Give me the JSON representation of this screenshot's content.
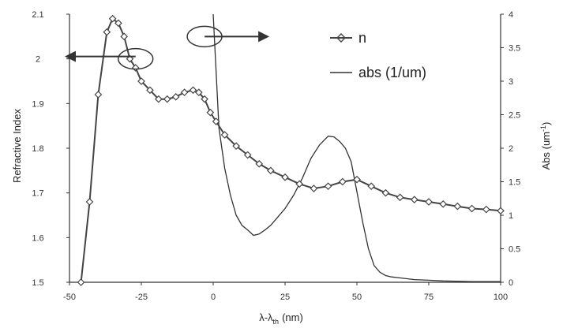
{
  "chart_data": {
    "type": "line",
    "xlabel": "λ-λ",
    "xlabel_sub": "th",
    "xlabel_unit": "(nm)",
    "ylabel_left": "Refractive Index",
    "ylabel_right": "Abs (um",
    "ylabel_right_sup": "-1",
    "ylabel_right_close": ")",
    "xlim": [
      -50,
      100
    ],
    "ylim_left": [
      1.5,
      2.1
    ],
    "ylim_right": [
      0,
      4
    ],
    "x_ticks": [
      -50,
      -25,
      0,
      25,
      50,
      75,
      100
    ],
    "x_tick_labels": [
      "-50",
      "-25",
      "0",
      "25",
      "50",
      "75",
      "100"
    ],
    "y_left_ticks": [
      1.5,
      1.6,
      1.7,
      1.8,
      1.9,
      2.0,
      2.1
    ],
    "y_left_tick_labels": [
      "1.5",
      "1.6",
      "1.7",
      "1.8",
      "1.9",
      "2",
      "2.1"
    ],
    "y_right_ticks": [
      0,
      0.5,
      1,
      1.5,
      2,
      2.5,
      3,
      3.5,
      4
    ],
    "y_right_tick_labels": [
      "0",
      "0.5",
      "1",
      "1.5",
      "2",
      "2.5",
      "3",
      "3.5",
      "4"
    ],
    "legend_position": "top-right",
    "series": [
      {
        "name": "n",
        "axis": "left",
        "marker": "diamond",
        "color": "#444444",
        "x": [
          -46,
          -43,
          -40,
          -37,
          -35,
          -33,
          -31,
          -29,
          -27,
          -25,
          -22,
          -19,
          -16,
          -13,
          -10,
          -7,
          -5,
          -3,
          -1,
          1,
          4,
          8,
          12,
          16,
          20,
          25,
          30,
          35,
          40,
          45,
          50,
          55,
          60,
          65,
          70,
          75,
          80,
          85,
          90,
          95,
          100
        ],
        "y": [
          1.5,
          1.68,
          1.92,
          2.06,
          2.09,
          2.08,
          2.05,
          2.0,
          1.98,
          1.95,
          1.93,
          1.91,
          1.91,
          1.915,
          1.925,
          1.93,
          1.925,
          1.91,
          1.88,
          1.86,
          1.83,
          1.805,
          1.785,
          1.765,
          1.75,
          1.735,
          1.72,
          1.71,
          1.715,
          1.725,
          1.73,
          1.715,
          1.7,
          1.69,
          1.685,
          1.68,
          1.675,
          1.67,
          1.665,
          1.663,
          1.66
        ]
      },
      {
        "name": "abs (1/um)",
        "axis": "right",
        "marker": "none",
        "color": "#333333",
        "x": [
          0,
          2,
          4,
          6,
          8,
          10,
          12,
          14,
          16,
          18,
          20,
          22,
          25,
          28,
          31,
          34,
          37,
          40,
          42,
          44,
          46,
          48,
          50,
          52,
          54,
          56,
          58,
          60,
          62,
          66,
          70,
          75,
          80,
          90,
          100
        ],
        "y": [
          4.0,
          2.3,
          1.7,
          1.3,
          1.0,
          0.85,
          0.78,
          0.7,
          0.72,
          0.78,
          0.85,
          0.95,
          1.1,
          1.3,
          1.55,
          1.85,
          2.05,
          2.18,
          2.17,
          2.1,
          2.0,
          1.8,
          1.35,
          0.9,
          0.5,
          0.25,
          0.15,
          0.1,
          0.08,
          0.06,
          0.04,
          0.03,
          0.02,
          0.01,
          0.01
        ]
      }
    ],
    "annotations": [
      {
        "kind": "ellipse-arrow",
        "points_to": "left-axis",
        "near_x": -27,
        "near_y_left": 2.0
      },
      {
        "kind": "ellipse-arrow",
        "points_to": "right-axis",
        "near_x": -3,
        "near_y_left": 2.05
      }
    ]
  }
}
